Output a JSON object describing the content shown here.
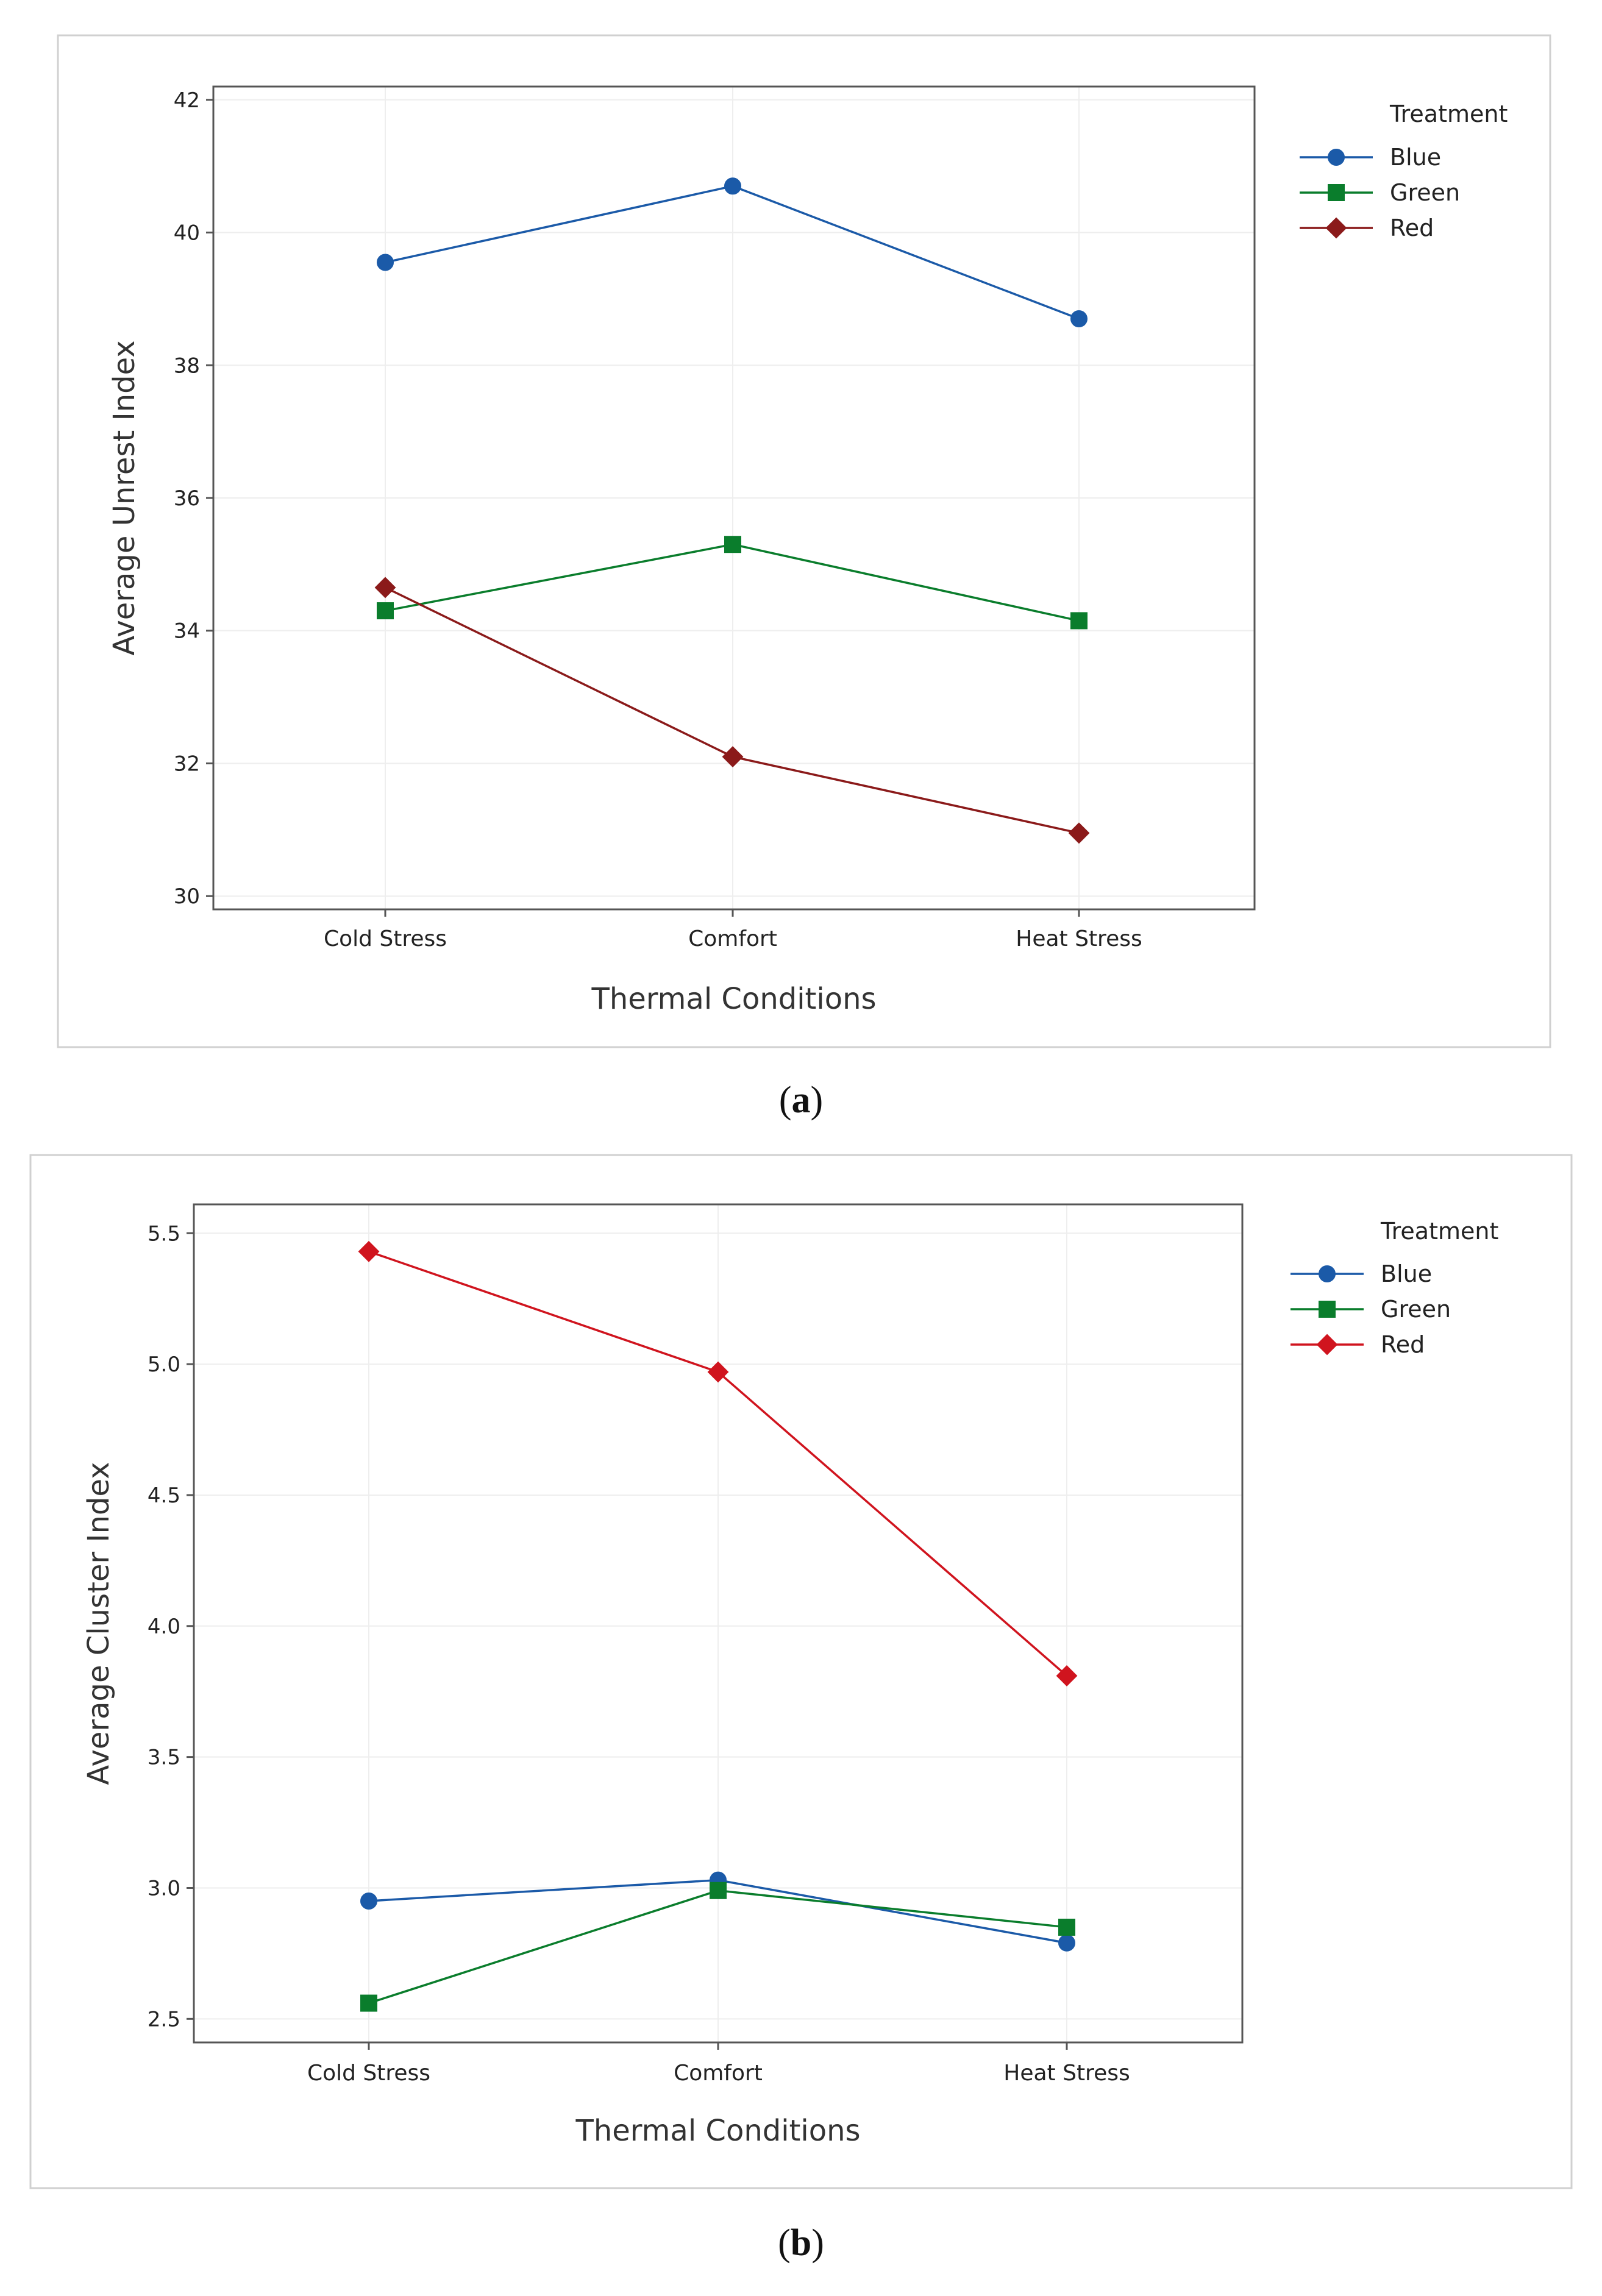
{
  "chart_data": [
    {
      "type": "line",
      "panel": "(a)",
      "caption_letter": "a",
      "categories": [
        "Cold Stress",
        "Comfort",
        "Heat Stress"
      ],
      "series": [
        {
          "name": "Blue",
          "color": "#1b5aa8",
          "marker": "circle",
          "values": [
            39.55,
            40.7,
            38.7
          ]
        },
        {
          "name": "Green",
          "color": "#0a7d2c",
          "marker": "square",
          "values": [
            34.3,
            35.3,
            34.15
          ]
        },
        {
          "name": "Red",
          "color": "#8b1a1a",
          "marker": "diamond",
          "values": [
            34.65,
            32.1,
            30.95
          ]
        }
      ],
      "xlabel": "Thermal Conditions",
      "ylabel": "Average Unrest Index",
      "ylim": [
        29.8,
        42.2
      ],
      "yticks": [
        30,
        32,
        34,
        36,
        38,
        40,
        42
      ],
      "ytick_labels": [
        "30",
        "32",
        "34",
        "36",
        "38",
        "40",
        "42"
      ],
      "legend_title": "Treatment",
      "legend_position": "top-right",
      "grid": true
    },
    {
      "type": "line",
      "panel": "(b)",
      "caption_letter": "b",
      "categories": [
        "Cold Stress",
        "Comfort",
        "Heat Stress"
      ],
      "series": [
        {
          "name": "Blue",
          "color": "#1b5aa8",
          "marker": "circle",
          "values": [
            2.95,
            3.03,
            2.79
          ]
        },
        {
          "name": "Green",
          "color": "#0a7d2c",
          "marker": "square",
          "values": [
            2.56,
            2.99,
            2.85
          ]
        },
        {
          "name": "Red",
          "color": "#d0141e",
          "marker": "diamond",
          "values": [
            5.43,
            4.97,
            3.81
          ]
        }
      ],
      "xlabel": "Thermal Conditions",
      "ylabel": "Average Cluster Index",
      "ylim": [
        2.41,
        5.61
      ],
      "yticks": [
        2.5,
        3.0,
        3.5,
        4.0,
        4.5,
        5.0,
        5.5
      ],
      "ytick_labels": [
        "2.5",
        "3.0",
        "3.5",
        "4.0",
        "4.5",
        "5.0",
        "5.5"
      ],
      "legend_title": "Treatment",
      "legend_position": "top-right",
      "grid": true
    }
  ]
}
